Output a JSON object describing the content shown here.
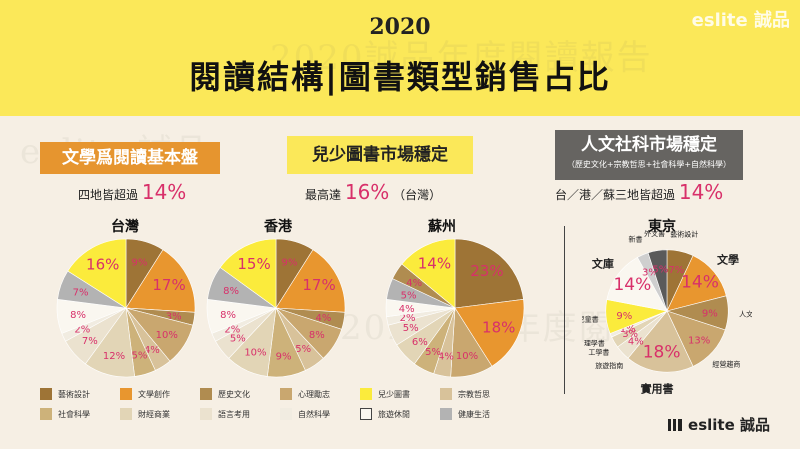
{
  "brand_watermark": "eslite 誠品",
  "watermarks": [
    "2020誠品年度閱讀報告",
    "eslite 誠品",
    "2020誠品年度閱讀報告"
  ],
  "header": {
    "year": "2020",
    "title": "閱讀結構|圖書類型銷售占比"
  },
  "sections": [
    {
      "box": "文學爲閱讀基本盤",
      "subtitle_prefix": "四地皆超過",
      "subtitle_value": "14%",
      "subtitle_suffix": ""
    },
    {
      "box": "兒少圖書市場穩定",
      "subtitle_prefix": "最高達",
      "subtitle_value": "16%",
      "subtitle_suffix": "（台灣）"
    },
    {
      "box": "人文社科市場穩定",
      "box_note": "（歷史文化+宗教哲思+社會科學+自然科學）",
      "subtitle_prefix": "台／港／蘇三地皆超過",
      "subtitle_value": "14%",
      "subtitle_suffix": ""
    }
  ],
  "legend": [
    {
      "name": "藝術設計",
      "color": "#9e7436"
    },
    {
      "name": "文學創作",
      "color": "#e8962f"
    },
    {
      "name": "歷史文化",
      "color": "#b08c50"
    },
    {
      "name": "心理勵志",
      "color": "#c9a76f"
    },
    {
      "name": "兒少圖書",
      "color": "#fbeb3c"
    },
    {
      "name": "宗教哲思",
      "color": "#d8c29a"
    },
    {
      "name": "社會科學",
      "color": "#cdb27a"
    },
    {
      "name": "財經商業",
      "color": "#e2d5b6"
    },
    {
      "name": "語言考用",
      "color": "#ebe2cf"
    },
    {
      "name": "自然科學",
      "color": "#f1ece1"
    },
    {
      "name": "旅遊休閒",
      "color": "#faf7f0"
    },
    {
      "name": "健康生活",
      "color": "#b3b3b3"
    }
  ],
  "chart_data": [
    {
      "type": "pie",
      "title": "台灣",
      "slices": [
        {
          "label": "藝術設計",
          "value": 9,
          "color": "#9e7436",
          "text": "9%"
        },
        {
          "label": "文學創作",
          "value": 17,
          "color": "#e8962f",
          "text": "17%"
        },
        {
          "label": "歷史文化",
          "value": 3,
          "color": "#b08c50",
          "text": "3%"
        },
        {
          "label": "心理勵志",
          "value": 10,
          "color": "#c9a76f",
          "text": "10%"
        },
        {
          "label": "宗教哲思",
          "value": 4,
          "color": "#d8c29a",
          "text": "4%"
        },
        {
          "label": "社會科學",
          "value": 5,
          "color": "#cdb27a",
          "text": "5%"
        },
        {
          "label": "財經商業",
          "value": 12,
          "color": "#e2d5b6",
          "text": "12%"
        },
        {
          "label": "語言考用",
          "value": 7,
          "color": "#ebe2cf",
          "text": "7%"
        },
        {
          "label": "自然科學",
          "value": 2,
          "color": "#f1ece1",
          "text": "2%"
        },
        {
          "label": "旅遊休閒",
          "value": 8,
          "color": "#faf7f0",
          "text": "8%"
        },
        {
          "label": "健康生活",
          "value": 7,
          "color": "#b3b3b3",
          "text": "7%"
        },
        {
          "label": "兒少圖書",
          "value": 16,
          "color": "#fbeb3c",
          "text": "16%"
        }
      ]
    },
    {
      "type": "pie",
      "title": "香港",
      "slices": [
        {
          "label": "藝術設計",
          "value": 9,
          "color": "#9e7436",
          "text": "9%"
        },
        {
          "label": "文學創作",
          "value": 17,
          "color": "#e8962f",
          "text": "17%"
        },
        {
          "label": "歷史文化",
          "value": 4,
          "color": "#b08c50",
          "text": "4%"
        },
        {
          "label": "心理勵志",
          "value": 8,
          "color": "#c9a76f",
          "text": "8%"
        },
        {
          "label": "宗教哲思",
          "value": 5,
          "color": "#d8c29a",
          "text": "5%"
        },
        {
          "label": "社會科學",
          "value": 9,
          "color": "#cdb27a",
          "text": "9%"
        },
        {
          "label": "財經商業",
          "value": 10,
          "color": "#e2d5b6",
          "text": "10%"
        },
        {
          "label": "語言考用",
          "value": 5,
          "color": "#ebe2cf",
          "text": "5%"
        },
        {
          "label": "自然科學",
          "value": 2,
          "color": "#f1ece1",
          "text": "2%"
        },
        {
          "label": "旅遊休閒",
          "value": 8,
          "color": "#faf7f0",
          "text": "8%"
        },
        {
          "label": "健康生活",
          "value": 8,
          "color": "#b3b3b3",
          "text": "8%"
        },
        {
          "label": "兒少圖書",
          "value": 15,
          "color": "#fbeb3c",
          "text": "15%"
        }
      ]
    },
    {
      "type": "pie",
      "title": "蘇州",
      "slices": [
        {
          "label": "藝術設計",
          "value": 23,
          "color": "#9e7436",
          "text": "23%"
        },
        {
          "label": "文學創作",
          "value": 18,
          "color": "#e8962f",
          "text": "18%"
        },
        {
          "label": "心理勵志",
          "value": 10,
          "color": "#c9a76f",
          "text": "10%"
        },
        {
          "label": "宗教哲思",
          "value": 4,
          "color": "#d8c29a",
          "text": "4%"
        },
        {
          "label": "社會科學",
          "value": 5,
          "color": "#cdb27a",
          "text": "5%"
        },
        {
          "label": "財經商業",
          "value": 6,
          "color": "#e2d5b6",
          "text": "6%"
        },
        {
          "label": "語言考用",
          "value": 5,
          "color": "#ebe2cf",
          "text": "5%"
        },
        {
          "label": "自然科學",
          "value": 2,
          "color": "#f1ece1",
          "text": "2%"
        },
        {
          "label": "旅遊休閒",
          "value": 4,
          "color": "#faf7f0",
          "text": "4%"
        },
        {
          "label": "健康生活",
          "value": 5,
          "color": "#b3b3b3",
          "text": "5%"
        },
        {
          "label": "歷史文化",
          "value": 4,
          "color": "#b08c50",
          "text": "4%"
        },
        {
          "label": "兒少圖書",
          "value": 14,
          "color": "#fbeb3c",
          "text": "14%"
        }
      ]
    },
    {
      "type": "pie",
      "title": "東京",
      "slices": [
        {
          "label": "藝術設計",
          "value": 7,
          "color": "#9e7436",
          "text": "7%"
        },
        {
          "label": "文學",
          "value": 14,
          "color": "#e8962f",
          "text": "14%"
        },
        {
          "label": "人文",
          "value": 9,
          "color": "#b08c50",
          "text": "9%"
        },
        {
          "label": "經營趨商",
          "value": 13,
          "color": "#c9a76f",
          "text": "13%"
        },
        {
          "label": "實用書",
          "value": 18,
          "color": "#d8c29a",
          "text": "18%"
        },
        {
          "label": "旅遊指南",
          "value": 4,
          "color": "#ebe2cf",
          "text": "4%"
        },
        {
          "label": "工學書",
          "value": 3,
          "color": "#e2d5b6",
          "text": "3%"
        },
        {
          "label": "理學書",
          "value": 1,
          "color": "#f1ece1",
          "text": "1%"
        },
        {
          "label": "兒童書",
          "value": 9,
          "color": "#fbeb3c",
          "text": "9%"
        },
        {
          "label": "文庫",
          "value": 14,
          "color": "#faf7f0",
          "text": "14%"
        },
        {
          "label": "新書",
          "value": 3,
          "color": "#cfcfcf",
          "text": "3%"
        },
        {
          "label": "外文書",
          "value": 5,
          "color": "#5a5a5a",
          "text": "5%"
        }
      ]
    }
  ]
}
